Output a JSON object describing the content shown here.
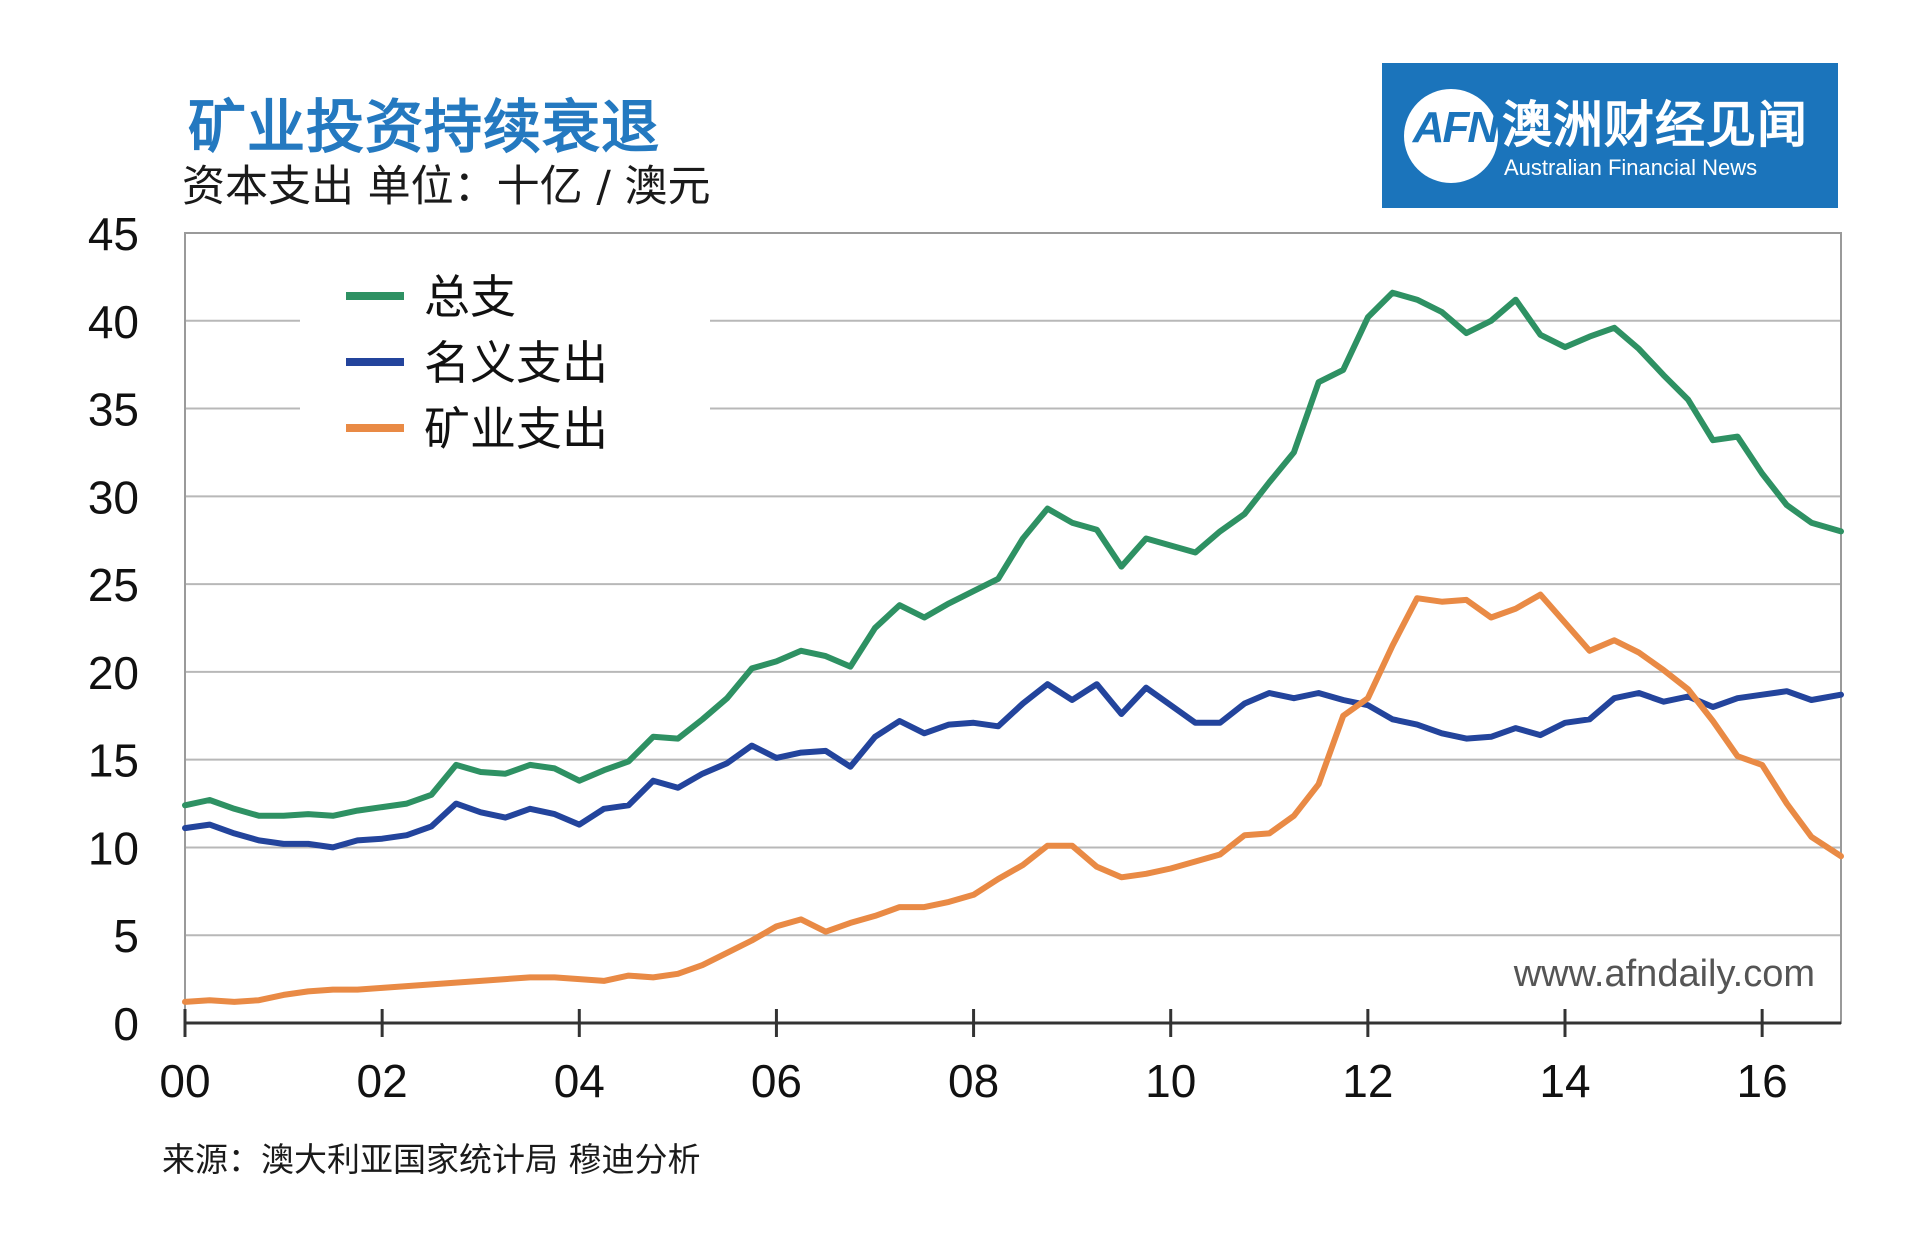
{
  "chart_data": {
    "type": "line",
    "title": "矿业投资持续衰退",
    "subtitle": "资本支出 单位：十亿 / 澳元",
    "x_tick_labels": [
      "00",
      "02",
      "04",
      "06",
      "08",
      "10",
      "12",
      "14",
      "16"
    ],
    "x_range": [
      2000,
      2016.8
    ],
    "ylim": [
      0,
      45
    ],
    "y_ticks": [
      0,
      5,
      10,
      15,
      20,
      25,
      30,
      35,
      40,
      45
    ],
    "grid": true,
    "legend_placement": "top-left",
    "series": [
      {
        "name": "总支",
        "color": "#2e9163",
        "points": [
          [
            2000.0,
            12.4
          ],
          [
            2000.25,
            12.7
          ],
          [
            2000.5,
            12.2
          ],
          [
            2000.75,
            11.8
          ],
          [
            2001.0,
            11.8
          ],
          [
            2001.25,
            11.9
          ],
          [
            2001.5,
            11.8
          ],
          [
            2001.75,
            12.1
          ],
          [
            2002.0,
            12.3
          ],
          [
            2002.25,
            12.5
          ],
          [
            2002.5,
            13.0
          ],
          [
            2002.75,
            14.7
          ],
          [
            2003.0,
            14.3
          ],
          [
            2003.25,
            14.2
          ],
          [
            2003.5,
            14.7
          ],
          [
            2003.75,
            14.5
          ],
          [
            2004.0,
            13.8
          ],
          [
            2004.25,
            14.4
          ],
          [
            2004.5,
            14.9
          ],
          [
            2004.75,
            16.3
          ],
          [
            2005.0,
            16.2
          ],
          [
            2005.25,
            17.3
          ],
          [
            2005.5,
            18.5
          ],
          [
            2005.75,
            20.2
          ],
          [
            2006.0,
            20.6
          ],
          [
            2006.25,
            21.2
          ],
          [
            2006.5,
            20.9
          ],
          [
            2006.75,
            20.3
          ],
          [
            2007.0,
            22.5
          ],
          [
            2007.25,
            23.8
          ],
          [
            2007.5,
            23.1
          ],
          [
            2007.75,
            23.9
          ],
          [
            2008.0,
            24.6
          ],
          [
            2008.25,
            25.3
          ],
          [
            2008.5,
            27.6
          ],
          [
            2008.75,
            29.3
          ],
          [
            2009.0,
            28.5
          ],
          [
            2009.25,
            28.1
          ],
          [
            2009.5,
            26.0
          ],
          [
            2009.75,
            27.6
          ],
          [
            2010.0,
            27.2
          ],
          [
            2010.25,
            26.8
          ],
          [
            2010.5,
            28.0
          ],
          [
            2010.75,
            29.0
          ],
          [
            2011.0,
            30.8
          ],
          [
            2011.25,
            32.5
          ],
          [
            2011.5,
            36.5
          ],
          [
            2011.75,
            37.2
          ],
          [
            2012.0,
            40.2
          ],
          [
            2012.25,
            41.6
          ],
          [
            2012.5,
            41.2
          ],
          [
            2012.75,
            40.5
          ],
          [
            2013.0,
            39.3
          ],
          [
            2013.25,
            40.0
          ],
          [
            2013.5,
            41.2
          ],
          [
            2013.75,
            39.2
          ],
          [
            2014.0,
            38.5
          ],
          [
            2014.25,
            39.1
          ],
          [
            2014.5,
            39.6
          ],
          [
            2014.75,
            38.4
          ],
          [
            2015.0,
            36.9
          ],
          [
            2015.25,
            35.5
          ],
          [
            2015.5,
            33.2
          ],
          [
            2015.75,
            33.4
          ],
          [
            2016.0,
            31.3
          ],
          [
            2016.25,
            29.5
          ],
          [
            2016.5,
            28.5
          ],
          [
            2016.8,
            28.0
          ]
        ]
      },
      {
        "name": "名义支出",
        "color": "#23449c",
        "points": [
          [
            2000.0,
            11.1
          ],
          [
            2000.25,
            11.3
          ],
          [
            2000.5,
            10.8
          ],
          [
            2000.75,
            10.4
          ],
          [
            2001.0,
            10.2
          ],
          [
            2001.25,
            10.2
          ],
          [
            2001.5,
            10.0
          ],
          [
            2001.75,
            10.4
          ],
          [
            2002.0,
            10.5
          ],
          [
            2002.25,
            10.7
          ],
          [
            2002.5,
            11.2
          ],
          [
            2002.75,
            12.5
          ],
          [
            2003.0,
            12.0
          ],
          [
            2003.25,
            11.7
          ],
          [
            2003.5,
            12.2
          ],
          [
            2003.75,
            11.9
          ],
          [
            2004.0,
            11.3
          ],
          [
            2004.25,
            12.2
          ],
          [
            2004.5,
            12.4
          ],
          [
            2004.75,
            13.8
          ],
          [
            2005.0,
            13.4
          ],
          [
            2005.25,
            14.2
          ],
          [
            2005.5,
            14.8
          ],
          [
            2005.75,
            15.8
          ],
          [
            2006.0,
            15.1
          ],
          [
            2006.25,
            15.4
          ],
          [
            2006.5,
            15.5
          ],
          [
            2006.75,
            14.6
          ],
          [
            2007.0,
            16.3
          ],
          [
            2007.25,
            17.2
          ],
          [
            2007.5,
            16.5
          ],
          [
            2007.75,
            17.0
          ],
          [
            2008.0,
            17.1
          ],
          [
            2008.25,
            16.9
          ],
          [
            2008.5,
            18.2
          ],
          [
            2008.75,
            19.3
          ],
          [
            2009.0,
            18.4
          ],
          [
            2009.25,
            19.3
          ],
          [
            2009.5,
            17.6
          ],
          [
            2009.75,
            19.1
          ],
          [
            2010.0,
            18.1
          ],
          [
            2010.25,
            17.1
          ],
          [
            2010.5,
            17.1
          ],
          [
            2010.75,
            18.2
          ],
          [
            2011.0,
            18.8
          ],
          [
            2011.25,
            18.5
          ],
          [
            2011.5,
            18.8
          ],
          [
            2011.75,
            18.4
          ],
          [
            2012.0,
            18.1
          ],
          [
            2012.25,
            17.3
          ],
          [
            2012.5,
            17.0
          ],
          [
            2012.75,
            16.5
          ],
          [
            2013.0,
            16.2
          ],
          [
            2013.25,
            16.3
          ],
          [
            2013.5,
            16.8
          ],
          [
            2013.75,
            16.4
          ],
          [
            2014.0,
            17.1
          ],
          [
            2014.25,
            17.3
          ],
          [
            2014.5,
            18.5
          ],
          [
            2014.75,
            18.8
          ],
          [
            2015.0,
            18.3
          ],
          [
            2015.25,
            18.6
          ],
          [
            2015.5,
            18.0
          ],
          [
            2015.75,
            18.5
          ],
          [
            2016.0,
            18.7
          ],
          [
            2016.25,
            18.9
          ],
          [
            2016.5,
            18.4
          ],
          [
            2016.8,
            18.7
          ]
        ]
      },
      {
        "name": "矿业支出",
        "color": "#e98a45",
        "points": [
          [
            2000.0,
            1.2
          ],
          [
            2000.25,
            1.3
          ],
          [
            2000.5,
            1.2
          ],
          [
            2000.75,
            1.3
          ],
          [
            2001.0,
            1.6
          ],
          [
            2001.25,
            1.8
          ],
          [
            2001.5,
            1.9
          ],
          [
            2001.75,
            1.9
          ],
          [
            2002.0,
            2.0
          ],
          [
            2002.25,
            2.1
          ],
          [
            2002.5,
            2.2
          ],
          [
            2002.75,
            2.3
          ],
          [
            2003.0,
            2.4
          ],
          [
            2003.25,
            2.5
          ],
          [
            2003.5,
            2.6
          ],
          [
            2003.75,
            2.6
          ],
          [
            2004.0,
            2.5
          ],
          [
            2004.25,
            2.4
          ],
          [
            2004.5,
            2.7
          ],
          [
            2004.75,
            2.6
          ],
          [
            2005.0,
            2.8
          ],
          [
            2005.25,
            3.3
          ],
          [
            2005.5,
            4.0
          ],
          [
            2005.75,
            4.7
          ],
          [
            2006.0,
            5.5
          ],
          [
            2006.25,
            5.9
          ],
          [
            2006.5,
            5.2
          ],
          [
            2006.75,
            5.7
          ],
          [
            2007.0,
            6.1
          ],
          [
            2007.25,
            6.6
          ],
          [
            2007.5,
            6.6
          ],
          [
            2007.75,
            6.9
          ],
          [
            2008.0,
            7.3
          ],
          [
            2008.25,
            8.2
          ],
          [
            2008.5,
            9.0
          ],
          [
            2008.75,
            10.1
          ],
          [
            2009.0,
            10.1
          ],
          [
            2009.25,
            8.9
          ],
          [
            2009.5,
            8.3
          ],
          [
            2009.75,
            8.5
          ],
          [
            2010.0,
            8.8
          ],
          [
            2010.25,
            9.2
          ],
          [
            2010.5,
            9.6
          ],
          [
            2010.75,
            10.7
          ],
          [
            2011.0,
            10.8
          ],
          [
            2011.25,
            11.8
          ],
          [
            2011.5,
            13.6
          ],
          [
            2011.75,
            17.5
          ],
          [
            2012.0,
            18.5
          ],
          [
            2012.25,
            21.5
          ],
          [
            2012.5,
            24.2
          ],
          [
            2012.75,
            24.0
          ],
          [
            2013.0,
            24.1
          ],
          [
            2013.25,
            23.1
          ],
          [
            2013.5,
            23.6
          ],
          [
            2013.75,
            24.4
          ],
          [
            2014.0,
            22.8
          ],
          [
            2014.25,
            21.2
          ],
          [
            2014.5,
            21.8
          ],
          [
            2014.75,
            21.1
          ],
          [
            2015.0,
            20.1
          ],
          [
            2015.25,
            19.0
          ],
          [
            2015.5,
            17.2
          ],
          [
            2015.75,
            15.2
          ],
          [
            2016.0,
            14.7
          ],
          [
            2016.25,
            12.5
          ],
          [
            2016.5,
            10.6
          ],
          [
            2016.8,
            9.5
          ]
        ]
      }
    ]
  },
  "logo": {
    "mark": "AFN",
    "name_cn": "澳洲财经见闻",
    "name_en": "Australian Financial News"
  },
  "watermark": "www.afndaily.com",
  "source": "来源：澳大利亚国家统计局 穆迪分析"
}
